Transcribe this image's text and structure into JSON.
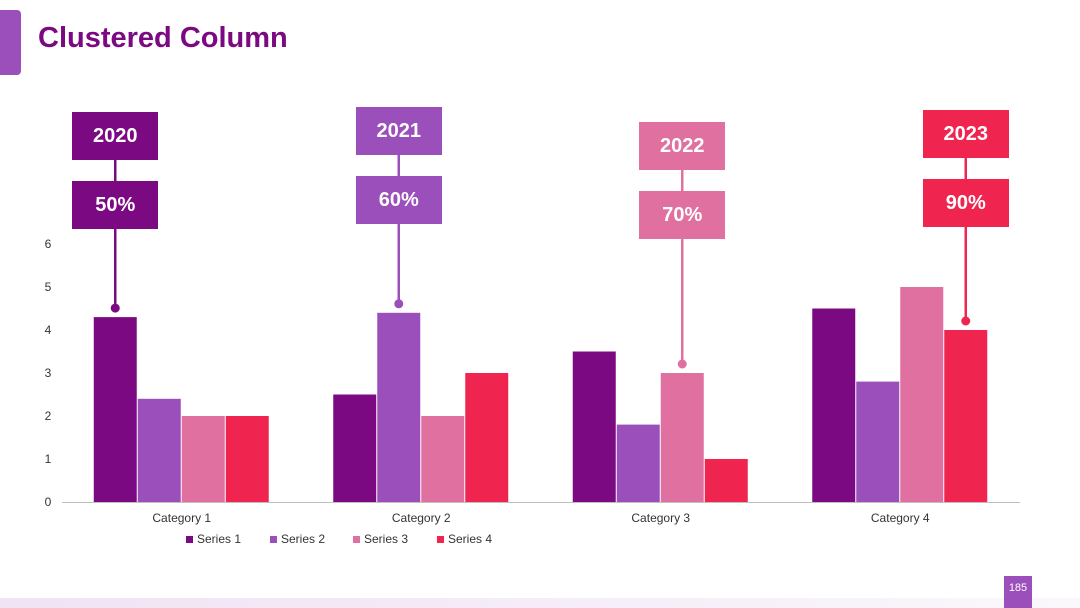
{
  "title": "Clustered Column",
  "page_number": "185",
  "colors": {
    "series1": "#7b0a82",
    "series2": "#9b4fba",
    "series3": "#e070a0",
    "series4": "#ef2550",
    "accent": "#9b4fba"
  },
  "callouts": [
    {
      "year": "2020",
      "percent": "50%",
      "color": "#7b0a82",
      "category_index": 0,
      "series_index": 0
    },
    {
      "year": "2021",
      "percent": "60%",
      "color": "#9b4fba",
      "category_index": 1,
      "series_index": 1
    },
    {
      "year": "2022",
      "percent": "70%",
      "color": "#e070a0",
      "category_index": 2,
      "series_index": 2
    },
    {
      "year": "2023",
      "percent": "90%",
      "color": "#ef2550",
      "category_index": 3,
      "series_index": 3
    }
  ],
  "chart_data": {
    "type": "bar",
    "title": "Clustered Column",
    "xlabel": "",
    "ylabel": "",
    "categories": [
      "Category 1",
      "Category 2",
      "Category 3",
      "Category 4"
    ],
    "ylim": [
      0,
      6
    ],
    "yticks": [
      "0",
      "1",
      "2",
      "3",
      "4",
      "5",
      "6"
    ],
    "grid": false,
    "legend": "bottom",
    "series": [
      {
        "name": "Series 1",
        "values": [
          4.3,
          2.5,
          3.5,
          4.5
        ]
      },
      {
        "name": "Series 2",
        "values": [
          2.4,
          4.4,
          1.8,
          2.8
        ]
      },
      {
        "name": "Series 3",
        "values": [
          2.0,
          2.0,
          3.0,
          5.0
        ]
      },
      {
        "name": "Series 4",
        "values": [
          2.0,
          3.0,
          1.0,
          4.0
        ]
      }
    ]
  }
}
